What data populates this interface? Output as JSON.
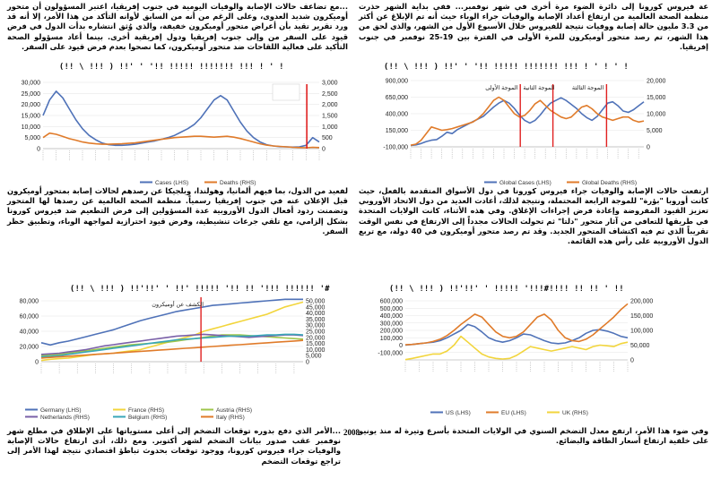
{
  "text": {
    "p_top_right": "عة فيروس كورونا إلى دائرة الضوء مرة أخرى في شهر نوفمبر... ففي بداية الشهر حذرت منظمة الصحة العالمية من ارتفاع أعداد الإصابة والوفيات جراء الوباء حيث أنه تم الإبلاغ عن أكثر من 3.3 مليون حالة إصابة ووفيات نتيجة للفيروس خلال الأسبوع الأول من الشهر، والذي لحق من هذا الشهر، تم رصد متحور أوميكرون للمرة الأولى في الفترة بين 19-25 نوفمبر في جنوب إفريقيا.",
    "p_top_left": "...مع تضاعف حالات الإصابة والوفيات اليومية في جنوب إفريقيا، اعتبر المسؤولون أن متحور أوميكرون شديد العدوى، وعلى الرغم من أنه من السابق لأوانه التأكد من هذا الأمر، إلا أنه قد ورد تقرير تقيد بأن أعراض متحور أوميكرون خفيفة، والذي وُثق انتشاره بدأت الدول في فرض قيود على السفر من وإلى جنوب إفريقيا ودول إفريقية أخرى. بينما أعاد مسؤولو الصحة التأكيد على فعالية اللقاحات ضد متحور أوميكرون، كما نصحوا بعدم فرض قيود على السفر.",
    "p_mid_right": "ارتفعت حالات الإصابة والوفيات جراء فيروس كورونا في دول الأسواق المتقدمة بالفعل، حيث كانت أوروبا \"بؤرة\" للموجة الرابعة المحتملة، ونتيجة لذلك، أعادت العديد من دول الاتحاد الأوروبي تعزيز القيود المفروضة وإعادة فرض إجراءات الإغلاق. وفي هذه الأثناء، كانت الولايات المتحدة في طريقها للتعافي من آثار متحور \"دلتا\" ثم تحولت الحالات مجدداً إلى الارتفاع في نفس الوقت تقريباً الذي تم فيه اكتشاف المتحور الجديد. وقد تم رصد متحور أوميكرون في 40 دولة، مع تربع الدول الأوروبية على رأس هذه القائمة.",
    "p_mid_left": "لفعيد من الدول، بما فيهم ألمانيا، وهولندا، وبلجيكا عن رصدهم لحالات إصابة بمتحور أوميكرون قبل الإعلان عنه في جنوب إفريقيا رسمياً. منظمة الصحة العالمية عن رصدها لها المتحور وتضمنت ردود أفعال الدول الأوروبية عدة المسؤولين إلى فرض التطعيم ضد فيروس كورونا بشكل إلزامي، مع تلقي جرعات تنشيطية، وفرض قيود احترازية لمواجهة الوباء، وتطبيق حظر السفر.",
    "p_bot_right": "وفي ضوء هذا الأمر، ارتفع معدل التضخم السنوي في الولايات المتحدة بأسرع وتيرة له منذ يونيو على خلفية ارتفاع أسعار الطاقة والبضائع.",
    "p_bot_left": "...الأمر الذي دفع بدوره توقعات التضخم إلى أعلى مستوياتها على الإطلاق في مطلع شهر نوفمبر عقب صدور بيانات التضخم لشهر أكتوبر. ومع ذلك، أدى ارتفاع حالات الإصابة والوفيات جراء فيروس كورونا، ووجود توقعات بحدوث تباطؤ اقتصادي نتيجة لهذا الأمر إلى تراجع توقعات التضخم",
    "year": "2008"
  },
  "chart_titles": {
    "c1": "(!! \\ !!! ) !!' ' '!! !!!!! !!!!!!! !!! ! ' ! ' !",
    "c2": "(!! \\ !!! ) !!' ' '!! !!!!! !!!!!!! !!! ! ' !",
    "c3": "(!! \\ !!! ) !!'!!' ' !!!!! '!!!#!!!!  !! !! ' !!",
    "c4": "(!! \\ !!! ) !!'!!' ' !!' !!!!! '!! !! '!!!  !!!!!! '#"
  },
  "chart_data": [
    {
      "id": "c1",
      "type": "line",
      "title": "Global Cases / Global Deaths",
      "y_left": {
        "min": -100000,
        "max": 900000,
        "ticks": [
          -100000,
          150000,
          400000,
          650000,
          900000
        ]
      },
      "y_right": {
        "min": 0,
        "max": 20000,
        "ticks": [
          0,
          5000,
          10000,
          15000,
          20000
        ]
      },
      "series": [
        {
          "name": "Global Cases (LHS)",
          "axis": "left",
          "color": "#4f72b8",
          "values": [
            -80000,
            -70000,
            -50000,
            -20000,
            0,
            10000,
            60000,
            120000,
            100000,
            160000,
            200000,
            240000,
            280000,
            320000,
            360000,
            430000,
            500000,
            560000,
            600000,
            560000,
            480000,
            380000,
            300000,
            260000,
            300000,
            380000,
            480000,
            560000,
            600000,
            640000,
            600000,
            540000,
            480000,
            400000,
            340000,
            300000,
            360000,
            460000,
            560000,
            580000,
            520000,
            440000,
            420000,
            460000,
            520000,
            580000
          ]
        },
        {
          "name": "Global Deaths (RHS)",
          "axis": "right",
          "color": "#e07b2a",
          "values": [
            500,
            800,
            2000,
            4000,
            6000,
            5500,
            5000,
            5200,
            5500,
            6000,
            6500,
            7000,
            7500,
            8500,
            10000,
            12000,
            14000,
            15000,
            14000,
            12000,
            10000,
            9000,
            9500,
            11000,
            13000,
            14000,
            12500,
            11000,
            10000,
            9000,
            8500,
            9000,
            10500,
            12000,
            12500,
            11500,
            10000,
            9000,
            8500,
            8000,
            8500,
            9000,
            9000,
            8000,
            7500,
            7800
          ]
        }
      ],
      "markers": [
        "الموجة الأولى",
        "الموجة الثانية",
        "الموجة الثالثة"
      ]
    },
    {
      "id": "c2",
      "type": "line",
      "y_left": {
        "min": 0,
        "max": 30000,
        "ticks": [
          0,
          5000,
          10000,
          15000,
          20000,
          25000,
          30000
        ]
      },
      "y_right": {
        "min": 0,
        "max": 3000,
        "ticks": [
          0,
          500,
          1000,
          1500,
          2000,
          2500,
          3000
        ]
      },
      "series": [
        {
          "name": "Cases (LHS)",
          "axis": "left",
          "color": "#4f72b8",
          "values": [
            15000,
            22000,
            26000,
            23000,
            18000,
            13000,
            9000,
            6000,
            4000,
            2500,
            1800,
            1500,
            1500,
            1700,
            2000,
            2500,
            3000,
            3500,
            4200,
            5000,
            6000,
            7500,
            9000,
            11000,
            14000,
            18000,
            22000,
            24000,
            22000,
            17000,
            12000,
            8000,
            5000,
            3000,
            1800,
            1200,
            900,
            800,
            700,
            800,
            1500,
            5000,
            3000
          ]
        },
        {
          "name": "Deaths (RHS)",
          "axis": "right",
          "color": "#e07b2a",
          "values": [
            500,
            700,
            650,
            550,
            450,
            380,
            300,
            250,
            220,
            200,
            200,
            210,
            220,
            240,
            260,
            300,
            340,
            380,
            420,
            460,
            500,
            520,
            540,
            560,
            560,
            540,
            520,
            540,
            560,
            520,
            460,
            380,
            300,
            220,
            160,
            120,
            100,
            80,
            60,
            50,
            40,
            60,
            50
          ]
        }
      ]
    },
    {
      "id": "c3",
      "type": "line",
      "y_left": {
        "min": -200000,
        "max": 600000,
        "ticks": [
          -100000,
          0,
          100000,
          200000,
          300000,
          400000,
          500000,
          600000
        ]
      },
      "y_right": {
        "min": 0,
        "max": 200000,
        "ticks": [
          0,
          50000,
          100000,
          150000,
          200000
        ]
      },
      "series": [
        {
          "name": "US (LHS)",
          "axis": "left",
          "color": "#4f72b8",
          "values": [
            0,
            10000,
            20000,
            30000,
            40000,
            60000,
            100000,
            150000,
            200000,
            280000,
            250000,
            180000,
            100000,
            60000,
            40000,
            60000,
            100000,
            150000,
            140000,
            100000,
            60000,
            30000,
            20000,
            30000,
            60000,
            100000,
            160000,
            200000,
            210000,
            190000,
            160000,
            120000,
            100000
          ]
        },
        {
          "name": "EU (LHS)",
          "axis": "left",
          "color": "#e07b2a",
          "values": [
            5000,
            10000,
            20000,
            30000,
            50000,
            80000,
            130000,
            200000,
            280000,
            350000,
            420000,
            380000,
            280000,
            180000,
            120000,
            100000,
            120000,
            180000,
            280000,
            380000,
            420000,
            340000,
            200000,
            100000,
            60000,
            50000,
            80000,
            140000,
            220000,
            300000,
            380000,
            480000,
            560000
          ]
        },
        {
          "name": "UK (RHS)",
          "axis": "right",
          "color": "#f2d53c",
          "values": [
            1000,
            5000,
            10000,
            15000,
            20000,
            20000,
            30000,
            50000,
            80000,
            60000,
            40000,
            20000,
            10000,
            5000,
            3000,
            5000,
            15000,
            30000,
            45000,
            40000,
            35000,
            30000,
            35000,
            40000,
            45000,
            40000,
            35000,
            45000,
            50000,
            48000,
            45000,
            55000,
            60000
          ]
        }
      ]
    },
    {
      "id": "c4",
      "type": "line",
      "y_left": {
        "min": 0,
        "max": 80000,
        "ticks": [
          0,
          20000,
          40000,
          60000,
          80000
        ]
      },
      "y_right": {
        "min": 0,
        "max": 50000,
        "ticks": [
          0,
          5000,
          10000,
          15000,
          20000,
          25000,
          30000,
          35000,
          40000,
          45000,
          50000
        ]
      },
      "marker_label": "الكشف عن أوميكرون",
      "series": [
        {
          "name": "Germany (LHS)",
          "axis": "left",
          "color": "#4f72b8",
          "values": [
            25000,
            22000,
            25000,
            27000,
            30000,
            33000,
            36000,
            39000,
            42000,
            46000,
            50000,
            54000,
            57000,
            60000,
            63000,
            66000,
            68000,
            70000,
            72000,
            74000,
            75000,
            76000,
            77000,
            78000,
            79000,
            80000,
            81000,
            82000,
            82000,
            82000
          ]
        },
        {
          "name": "France (RHS)",
          "axis": "right",
          "color": "#f2d53c",
          "values": [
            1000,
            2000,
            2500,
            3000,
            4000,
            5000,
            6000,
            6500,
            7000,
            8000,
            9000,
            10000,
            12000,
            14000,
            16000,
            18000,
            20000,
            22000,
            25000,
            27000,
            29000,
            31000,
            33000,
            35000,
            37000,
            39000,
            42000,
            45000,
            47000,
            49000
          ]
        },
        {
          "name": "Austria (RHS)",
          "axis": "right",
          "color": "#9fc64b",
          "values": [
            5000,
            5500,
            6000,
            7000,
            8000,
            9000,
            10000,
            11000,
            12000,
            13000,
            14000,
            14500,
            15000,
            15500,
            16000,
            17000,
            18000,
            19000,
            20000,
            21000,
            22000,
            22000,
            22000,
            21500,
            21000,
            20500,
            20000,
            19500,
            19000,
            18500
          ]
        },
        {
          "name": "Netherlands (RHS)",
          "axis": "right",
          "color": "#7a60a8",
          "values": [
            6000,
            6500,
            7000,
            8000,
            9000,
            10000,
            11500,
            13000,
            14000,
            15000,
            16000,
            17000,
            18000,
            19000,
            20000,
            21000,
            21500,
            22000,
            22500,
            22000,
            21500,
            21000,
            20500,
            20000,
            20500,
            21000,
            21500,
            22000,
            22000,
            21500
          ]
        },
        {
          "name": "Belgium (RHS)",
          "axis": "right",
          "color": "#39a7b8",
          "values": [
            4000,
            4500,
            5000,
            6000,
            7000,
            8000,
            9000,
            10000,
            11000,
            12000,
            13000,
            14000,
            15000,
            16000,
            17000,
            18000,
            18500,
            19000,
            19500,
            20000,
            20500,
            21000,
            21000,
            21000,
            21500,
            22000,
            22000,
            22500,
            22500,
            22000
          ]
        },
        {
          "name": "Italy (RHS)",
          "axis": "right",
          "color": "#e07b2a",
          "values": [
            3000,
            3500,
            4000,
            4500,
            5000,
            5500,
            6000,
            6500,
            7000,
            7500,
            8000,
            8500,
            9000,
            9500,
            10000,
            10500,
            11000,
            11500,
            12000,
            12500,
            13000,
            13500,
            14000,
            14500,
            15000,
            15500,
            16000,
            16500,
            17000,
            17500
          ]
        }
      ]
    }
  ]
}
